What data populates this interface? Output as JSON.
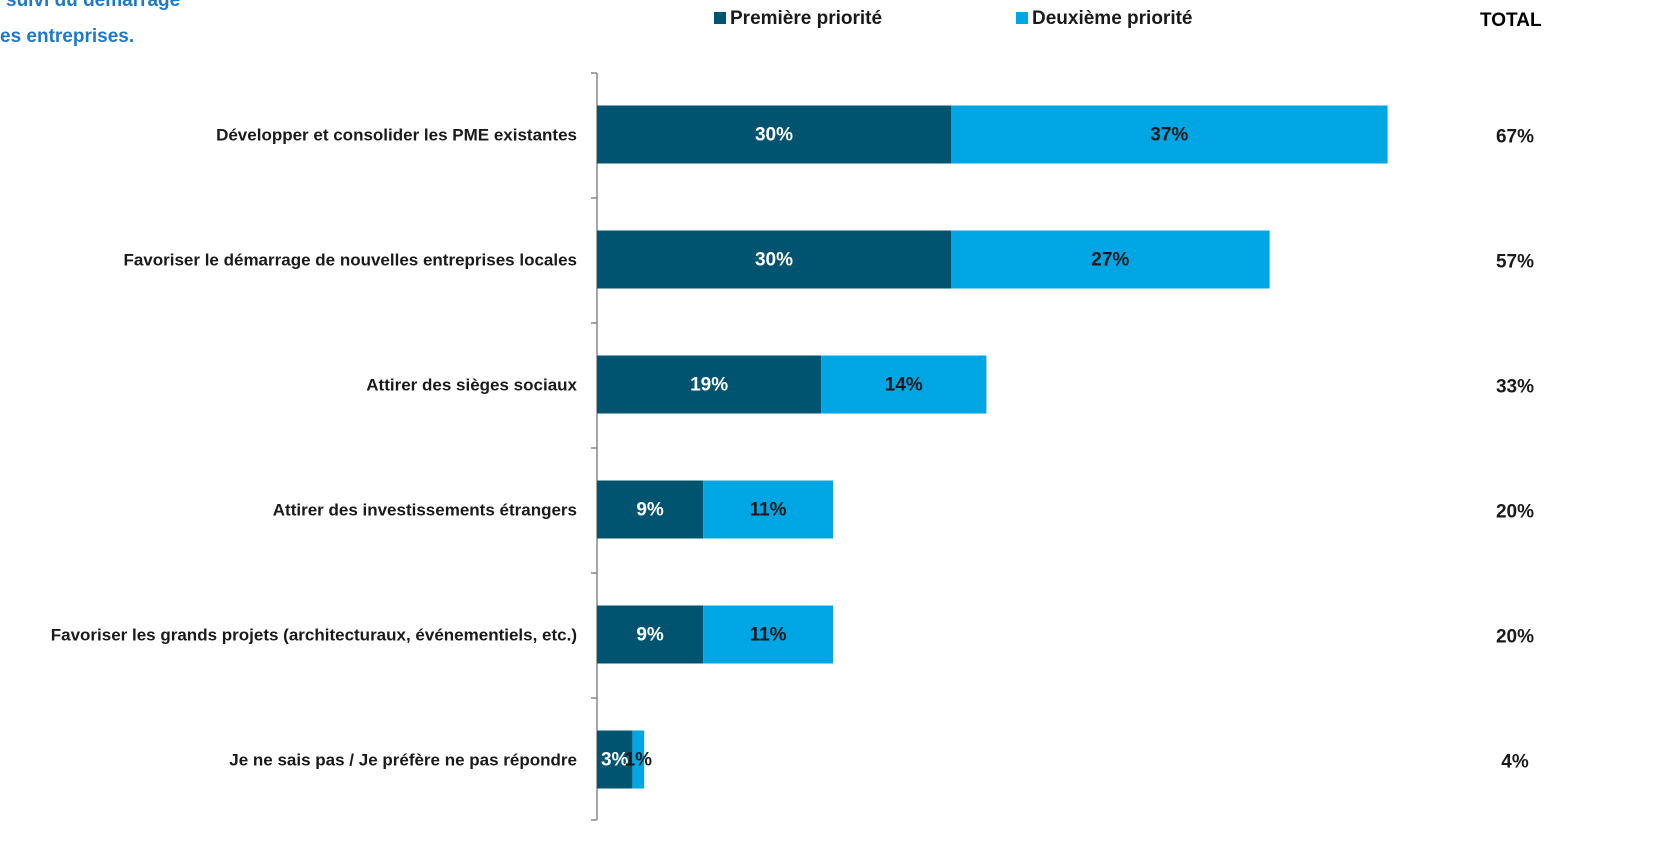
{
  "chart_data": {
    "type": "stacked-bar-horizontal",
    "title_lines": [
      "suivi du démarrage",
      "es entreprises."
    ],
    "categories": [
      "Développer et consolider les PME existantes",
      "Favoriser le démarrage de nouvelles entreprises locales",
      "Attirer des sièges sociaux",
      "Attirer des investissements étrangers",
      "Favoriser les grands projets (architecturaux, événementiels, etc.)",
      "Je ne sais pas / Je préfère ne pas répondre"
    ],
    "series": [
      {
        "name": "Première priorité",
        "color": "#005470",
        "label_color": "#ffffff",
        "values": [
          30,
          30,
          19,
          9,
          9,
          3
        ],
        "value_labels": [
          "30%",
          "30%",
          "19%",
          "9%",
          "9%",
          "3%"
        ]
      },
      {
        "name": "Deuxième priorité",
        "color": "#00a5e3",
        "label_color": "#1a1a1a",
        "values": [
          37,
          27,
          14,
          11,
          11,
          1
        ],
        "value_labels": [
          "37%",
          "27%",
          "14%",
          "11%",
          "11%",
          "1%"
        ]
      }
    ],
    "total_header": "TOTAL",
    "totals": [
      67,
      57,
      33,
      20,
      20,
      4
    ],
    "total_labels": [
      "67%",
      "57%",
      "33%",
      "20%",
      "20%",
      "4%"
    ],
    "legend": "top"
  }
}
